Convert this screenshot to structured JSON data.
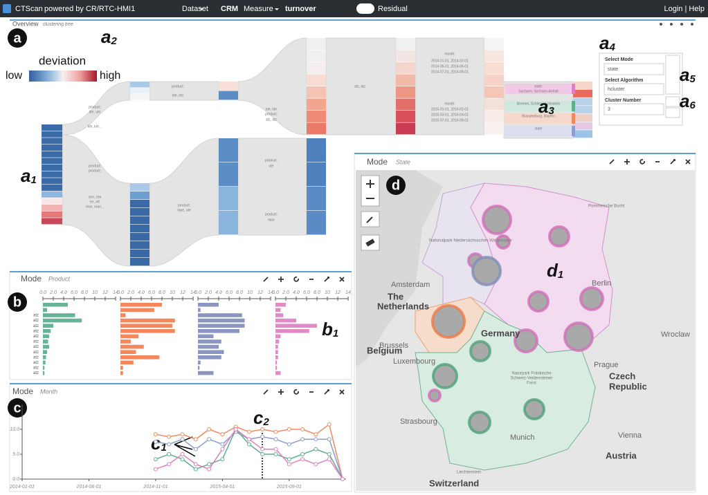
{
  "header": {
    "brand": "CTScan",
    "powered": "powered by CR/RTC-HMI1",
    "menu": [
      "Dataset",
      "CRM",
      "Measure",
      "turnover"
    ],
    "toggle": "Residual",
    "login": "Login | Help"
  },
  "overview": {
    "title": "Overview",
    "subtitle": "clustering tree",
    "legend": {
      "title": "deviation",
      "low": "low",
      "high": "high"
    },
    "node_labels": [
      "product:",
      "kte, ute",
      "kte, kte...",
      "product:",
      "product:",
      "zen, zen",
      "ter, ntt",
      "mse, man...",
      "product:",
      "kte, kte",
      "kte, kte",
      "product:",
      "atz, atz",
      "atz, atz",
      "product:",
      "ute",
      "product:",
      "mpe",
      "product:",
      "mpe, ute",
      "month:",
      "2014-01-01, 2014-02-01",
      "2014-05-01, 2014-06-01",
      "2014-07-01, 2014-08-01",
      "month:",
      "2015-01-01, 2015-02-01",
      "2015-03-01, 2015-04-01",
      "2015-07-01, 2015-08-01",
      "state:",
      "Sachsen, Sachsen-Anhalt",
      "Bremen, Schleswig-Holstein",
      "Brandenburg, Bayern",
      "state"
    ],
    "select": {
      "mode_label": "Select Mode",
      "mode": "state",
      "algorithm_label": "Select Algorithm",
      "algorithm": "hcluster",
      "cluster_label": "Cluster Number",
      "cluster": "3"
    }
  },
  "annotations": {
    "a": "a",
    "b": "b",
    "c": "c",
    "d": "d",
    "a1": {
      "letter": "a",
      "sub": "1"
    },
    "a2": {
      "letter": "a",
      "sub": "2"
    },
    "a3": {
      "letter": "a",
      "sub": "3"
    },
    "a4": {
      "letter": "a",
      "sub": "4"
    },
    "a5": {
      "letter": "a",
      "sub": "5"
    },
    "a6": {
      "letter": "a",
      "sub": "6"
    },
    "b1": {
      "letter": "b",
      "sub": "1"
    },
    "c1": {
      "letter": "c",
      "sub": "1"
    },
    "c2": {
      "letter": "c",
      "sub": "2"
    },
    "d1": {
      "letter": "d",
      "sub": "1"
    }
  },
  "product_panel": {
    "title": "Mode",
    "subtitle": "Product",
    "chart_data": {
      "type": "bar",
      "orientation": "horizontal",
      "categories": [
        null,
        null,
        "atz",
        "atz",
        "atz",
        "atz",
        "atz",
        "atz",
        "atz",
        "atz",
        "atz",
        "atz",
        "atz",
        "atz"
      ],
      "xlim": [
        0,
        14
      ],
      "xticks": [
        {
          "value": 0,
          "label": "0.0"
        },
        {
          "value": 2,
          "label": "2.0"
        },
        {
          "value": 4,
          "label": "4.0"
        },
        {
          "value": 6,
          "label": "6.0"
        },
        {
          "value": 8,
          "label": "8.0"
        },
        10,
        12,
        14
      ],
      "series": [
        {
          "color": "#66b395",
          "values": [
            4.8,
            0.8,
            6.2,
            7.5,
            2.0,
            1.5,
            1.2,
            1.0,
            1.2,
            0.8,
            0.6,
            0.5,
            0.3,
            0.3
          ]
        },
        {
          "color": "#f4875c",
          "values": [
            8.0,
            6.5,
            1.0,
            10.5,
            10.0,
            10.5,
            3.5,
            2.0,
            4.5,
            3.0,
            7.5,
            2.5,
            0.5,
            0.5
          ]
        },
        {
          "color": "#8a95c0",
          "values": [
            4.0,
            0.5,
            8.5,
            9.0,
            9.0,
            8.0,
            3.0,
            4.5,
            4.0,
            5.0,
            4.5,
            0.5,
            0.3,
            3.0
          ]
        },
        {
          "color": "#e08ac6",
          "values": [
            2.0,
            1.0,
            1.5,
            4.0,
            8.0,
            6.5,
            1.0,
            0.7,
            0.5,
            0.5,
            0.5,
            0.3,
            0.3,
            1.0
          ]
        }
      ]
    }
  },
  "month_panel": {
    "title": "Mode",
    "subtitle": "Month",
    "chart_data": {
      "type": "line",
      "categories": [
        "2014-01-01",
        null,
        null,
        null,
        null,
        "2014-06-01",
        null,
        null,
        null,
        null,
        "2014-11-01",
        null,
        null,
        null,
        null,
        "2015-04-01",
        null,
        null,
        null,
        null,
        "2015-09-01",
        null,
        null,
        null,
        null
      ],
      "ylim": [
        0,
        15
      ],
      "yticks": [
        {
          "value": 0,
          "label": "0.0"
        },
        {
          "value": 5,
          "label": "5.0"
        },
        {
          "value": 10,
          "label": "10.0"
        }
      ],
      "series": [
        {
          "color": "#f08a5d",
          "values": [
            null,
            null,
            null,
            null,
            null,
            null,
            null,
            null,
            null,
            null,
            9,
            8.5,
            9,
            8,
            10,
            9,
            10.5,
            9.5,
            10,
            9.5,
            10,
            10,
            9,
            11,
            0
          ]
        },
        {
          "color": "#8c9ccc",
          "values": [
            null,
            null,
            null,
            null,
            null,
            null,
            null,
            null,
            null,
            null,
            7.5,
            7,
            8,
            6,
            8,
            7,
            9.5,
            8,
            8.5,
            8,
            7,
            8,
            8,
            8,
            0
          ]
        },
        {
          "color": "#5fae8f",
          "values": [
            null,
            null,
            null,
            null,
            null,
            null,
            null,
            null,
            null,
            null,
            4,
            5,
            4,
            2,
            3,
            4,
            10,
            7,
            5,
            5,
            4,
            5,
            6,
            5,
            0
          ]
        },
        {
          "color": "#e07fbf",
          "values": [
            null,
            null,
            null,
            null,
            null,
            null,
            null,
            null,
            null,
            null,
            2,
            3,
            5,
            3,
            2,
            6,
            10,
            8,
            6,
            6,
            3,
            4,
            3,
            4,
            0
          ]
        }
      ]
    }
  },
  "map_panel": {
    "title": "Mode",
    "subtitle": "State",
    "places": [
      "Pommersche Bucht",
      "Nationalpark Niedersächsisches Wattenmeer",
      "Amsterdam",
      "The",
      "Netherlands",
      "Berlin",
      "Germany",
      "Brussels",
      "Belgium",
      "Wroclaw",
      "Prague",
      "Czech",
      "Republic",
      "Luxembourg",
      "Naturpark Fränkische",
      "Schweiz-Veldensteiner",
      "Forst",
      "Strasbourg",
      "Munich",
      "Vienna",
      "Austria",
      "Liechtenstein",
      "Switzerland"
    ]
  }
}
